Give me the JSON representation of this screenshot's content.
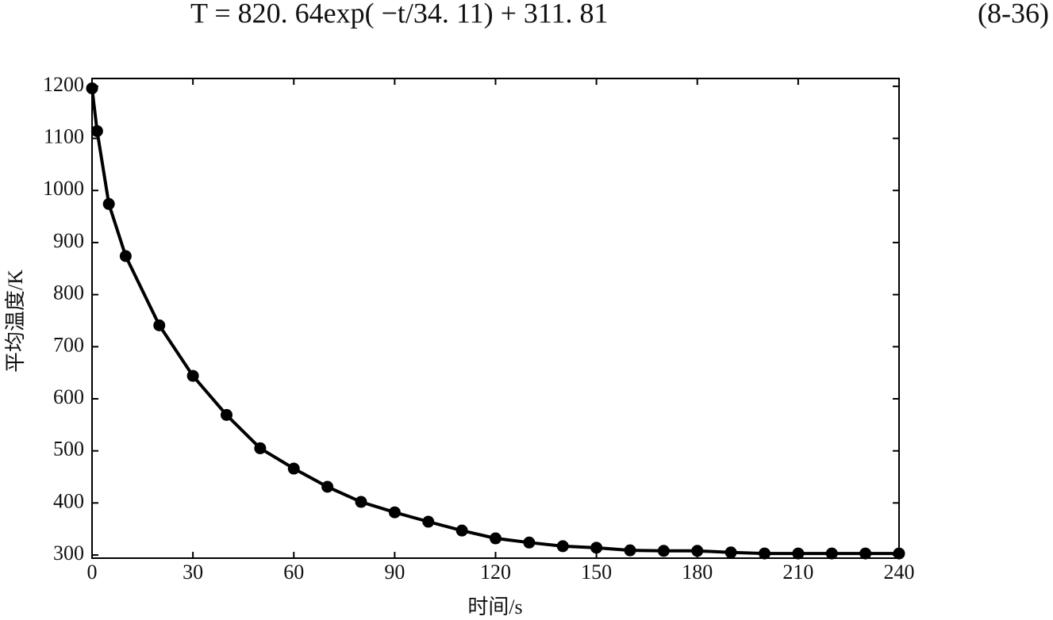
{
  "equation": {
    "text": "T = 820. 64exp( −t/34. 11) + 311. 81",
    "number": "(8-36)"
  },
  "chart_data": {
    "type": "line",
    "xlabel": "时间/s",
    "ylabel": "平均温度/K",
    "x": [
      0,
      1.5,
      5,
      10,
      20,
      30,
      40,
      50,
      60,
      70,
      80,
      90,
      100,
      110,
      120,
      130,
      140,
      150,
      160,
      170,
      180,
      190,
      200,
      210,
      220,
      230,
      240
    ],
    "series": [
      {
        "color": "#000000",
        "values": [
          1196,
          1114,
          974,
          874,
          741,
          644,
          569,
          505,
          466,
          431,
          402,
          382,
          364,
          347,
          332,
          324,
          317,
          314,
          309,
          308,
          308,
          305,
          303,
          303,
          303,
          303,
          303
        ]
      }
    ],
    "xlim": [
      0,
      240
    ],
    "ylim": [
      294,
      1215
    ],
    "xticks": [
      0,
      30,
      60,
      90,
      120,
      150,
      180,
      210,
      240
    ],
    "yticks": [
      300,
      400,
      500,
      600,
      700,
      800,
      900,
      1000,
      1100,
      1200
    ],
    "grid": false,
    "markers": true
  }
}
